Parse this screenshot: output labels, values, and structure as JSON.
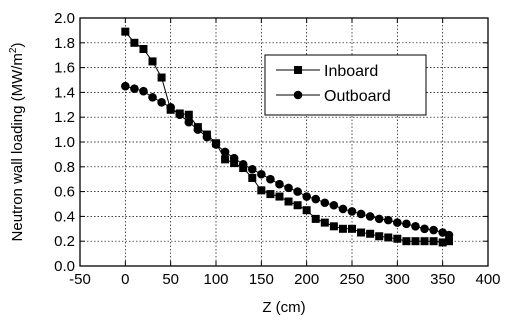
{
  "chart_data": {
    "type": "line",
    "title": "",
    "xlabel": "Z (cm)",
    "ylabel": "Neutron wall loading (MW/m",
    "ylabel_sup": "2",
    "ylabel_suffix": ")",
    "xlim": [
      -50,
      400
    ],
    "ylim": [
      0.0,
      2.0
    ],
    "xticks": [
      "-50",
      "0",
      "50",
      "100",
      "150",
      "200",
      "250",
      "300",
      "350",
      "400"
    ],
    "yticks": [
      "0.0",
      "0.2",
      "0.4",
      "0.6",
      "0.8",
      "1.0",
      "1.2",
      "1.4",
      "1.6",
      "1.8",
      "2.0"
    ],
    "grid": true,
    "legend_position": "top-center",
    "series": [
      {
        "name": "Inboard",
        "marker": "square",
        "x": [
          0,
          10,
          20,
          30,
          40,
          50,
          60,
          70,
          80,
          90,
          100,
          110,
          120,
          130,
          140,
          150,
          160,
          170,
          180,
          190,
          200,
          210,
          220,
          230,
          240,
          250,
          260,
          270,
          280,
          290,
          300,
          310,
          320,
          330,
          340,
          350,
          357
        ],
        "y": [
          1.89,
          1.8,
          1.75,
          1.65,
          1.52,
          1.26,
          1.23,
          1.22,
          1.12,
          1.06,
          0.99,
          0.86,
          0.83,
          0.79,
          0.71,
          0.61,
          0.58,
          0.56,
          0.52,
          0.49,
          0.45,
          0.38,
          0.35,
          0.32,
          0.3,
          0.3,
          0.27,
          0.26,
          0.24,
          0.23,
          0.22,
          0.2,
          0.2,
          0.2,
          0.2,
          0.19,
          0.2
        ]
      },
      {
        "name": "Outboard",
        "marker": "circle",
        "x": [
          0,
          10,
          20,
          30,
          40,
          50,
          60,
          70,
          80,
          90,
          100,
          110,
          120,
          130,
          140,
          150,
          160,
          170,
          180,
          190,
          200,
          210,
          220,
          230,
          240,
          250,
          260,
          270,
          280,
          290,
          300,
          310,
          320,
          330,
          340,
          350,
          357
        ],
        "y": [
          1.45,
          1.43,
          1.41,
          1.36,
          1.32,
          1.28,
          1.22,
          1.16,
          1.1,
          1.04,
          0.98,
          0.92,
          0.87,
          0.82,
          0.78,
          0.74,
          0.7,
          0.66,
          0.63,
          0.6,
          0.56,
          0.54,
          0.51,
          0.49,
          0.46,
          0.44,
          0.42,
          0.4,
          0.38,
          0.37,
          0.35,
          0.34,
          0.32,
          0.3,
          0.29,
          0.27,
          0.25
        ]
      }
    ]
  }
}
